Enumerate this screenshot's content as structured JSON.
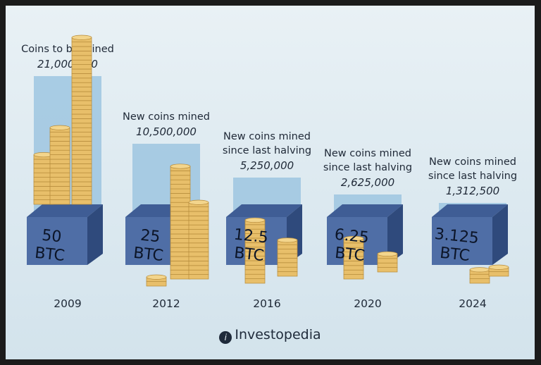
{
  "chart_data": {
    "type": "bar",
    "categories": [
      "2009",
      "2012",
      "2016",
      "2020",
      "2024"
    ],
    "reward_labels": [
      "50 BTC",
      "25 BTC",
      "12.5 BTC",
      "6.25 BTC",
      "3.125 BTC"
    ],
    "captions": [
      "Coins to be mined",
      "New coins mined",
      "New coins mined since last halving",
      "New coins mined since last halving",
      "New coins mined since last halving"
    ],
    "amount_labels": [
      "21,000,000",
      "10,500,000",
      "5,250,000",
      "2,625,000",
      "1,312,500"
    ],
    "values": [
      21000000,
      10500000,
      5250000,
      2625000,
      1312500
    ],
    "rewards": [
      50,
      25,
      12.5,
      6.25,
      3.125
    ],
    "ylim": [
      0,
      21000000
    ],
    "grid": false,
    "legend": "none",
    "colors": {
      "bar": "#9ec5e0",
      "cube_front": "#4f6ea6",
      "cube_top": "#3f5d95",
      "cube_side": "#2f4a7c",
      "coin": "#e8bf6a",
      "coin_edge": "#b58a3a"
    }
  },
  "branding": {
    "logo_icon": "investopedia-logo-icon",
    "logo_glyph": "i",
    "name": "Investopedia"
  }
}
